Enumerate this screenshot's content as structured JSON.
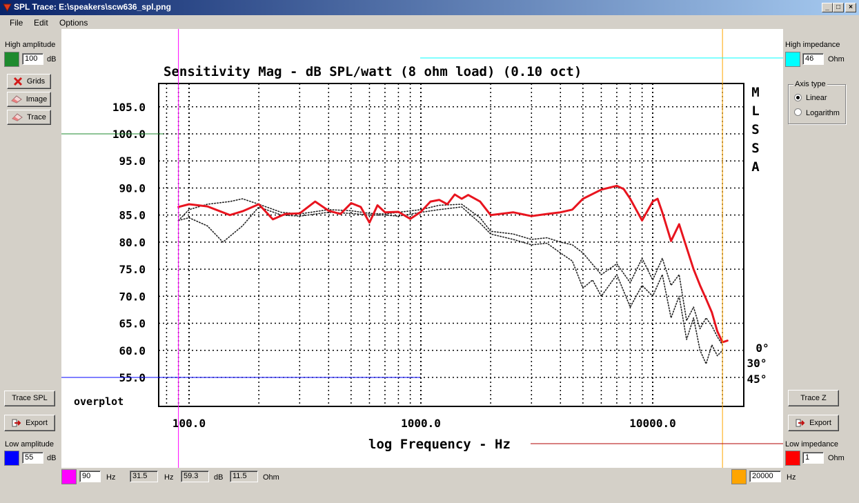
{
  "window": {
    "title": "SPL Trace: E:\\speakers\\scw636_spl.png",
    "min_glyph": "_",
    "max_glyph": "□",
    "close_glyph": "×"
  },
  "menu": [
    "File",
    "Edit",
    "Options"
  ],
  "left": {
    "high_amplitude_label": "High amplitude",
    "high_amplitude_value": "100",
    "high_amplitude_unit": "dB",
    "high_color": "#1e8a2e",
    "grids_label": "Grids",
    "image_label": "Image",
    "trace_label": "Trace",
    "trace_spl_label": "Trace SPL",
    "export_label": "Export",
    "low_amplitude_label": "Low amplitude",
    "low_amplitude_value": "55",
    "low_amplitude_unit": "dB",
    "low_color": "#0000ff"
  },
  "right": {
    "high_impedance_label": "High impedance",
    "high_impedance_value": "46",
    "high_impedance_unit": "Ohm",
    "high_color": "#00ffff",
    "axis_type_label": "Axis type",
    "axis_linear": "Linear",
    "axis_log": "Logarithm",
    "axis_selected": "Linear",
    "trace_z_label": "Trace Z",
    "export_label": "Export",
    "low_impedance_label": "Low impedance",
    "low_impedance_value": "1",
    "low_impedance_unit": "Ohm",
    "low_color": "#ff0000"
  },
  "bottom": {
    "start_color": "#ff00ff",
    "start_freq": "90",
    "hz1": "Hz",
    "readout_freq": "31.5",
    "hz2": "Hz",
    "readout_db": "59.3",
    "db": "dB",
    "readout_ohm": "11.5",
    "ohm": "Ohm",
    "end_color": "#ffa500",
    "end_freq": "20000",
    "hz3": "Hz"
  },
  "chart_data": {
    "type": "line",
    "title": "Sensitivity Mag - dB SPL/watt (8 ohm load) (0.10 oct)",
    "xlabel": "log Frequency - Hz",
    "x_scale": "log",
    "xlim": [
      80,
      22000
    ],
    "ylim": [
      52,
      108
    ],
    "y_ticks": [
      "105.0",
      "100.0",
      "95.0",
      "90.0",
      "85.0",
      "80.0",
      "75.0",
      "70.0",
      "65.0",
      "60.0",
      "55.0"
    ],
    "x_tick_labels": [
      "100.0",
      "1000.0",
      "10000.0"
    ],
    "side_label": "MLSSA",
    "corner_label": "overplot",
    "angle_labels": [
      "0°",
      "30°",
      "45°"
    ],
    "grid": true,
    "series": [
      {
        "name": "0°",
        "color": "#e8141e",
        "style": "solid",
        "x": [
          90,
          100,
          120,
          150,
          170,
          200,
          230,
          260,
          300,
          350,
          400,
          450,
          500,
          550,
          600,
          650,
          700,
          800,
          900,
          1000,
          1100,
          1200,
          1300,
          1400,
          1500,
          1600,
          1800,
          2000,
          2500,
          3000,
          3500,
          4000,
          4500,
          5000,
          6000,
          7000,
          7500,
          8000,
          9000,
          10000,
          10500,
          11000,
          12000,
          13000,
          14000,
          15000,
          16000,
          17000,
          18000,
          19000,
          20000,
          21000
        ],
        "y": [
          86.5,
          87,
          86.6,
          85,
          85.7,
          87,
          84.2,
          85.2,
          85.3,
          87.5,
          85.8,
          85.2,
          87.2,
          86.5,
          83.6,
          86.8,
          85.5,
          85.6,
          84.3,
          85.6,
          87.5,
          87.8,
          87,
          88.8,
          88,
          88.7,
          87.5,
          85,
          85.5,
          84.8,
          85.2,
          85.5,
          86,
          88,
          89.7,
          90.4,
          89.8,
          88,
          84,
          87.5,
          88,
          85.5,
          80.2,
          83.3,
          79,
          75,
          72,
          69.5,
          67,
          63.5,
          61.5,
          61.8
        ]
      },
      {
        "name": "30°",
        "color": "#222222",
        "style": "dotted",
        "x": [
          90,
          100,
          120,
          150,
          170,
          200,
          250,
          300,
          400,
          500,
          600,
          700,
          800,
          1000,
          1200,
          1500,
          1800,
          2000,
          2500,
          3000,
          3500,
          4000,
          4500,
          5000,
          6000,
          7000,
          8000,
          9000,
          10000,
          11000,
          12000,
          13000,
          14000,
          15000,
          16000,
          17000,
          18000,
          19000,
          20000
        ],
        "y": [
          84,
          86,
          87,
          87.5,
          88,
          87,
          85.5,
          85.2,
          86,
          85.8,
          85.3,
          85.2,
          85.5,
          86,
          86.8,
          87,
          84.5,
          82,
          81.5,
          80.5,
          80.8,
          80,
          79.5,
          78,
          74,
          76,
          72.5,
          77,
          73,
          77,
          72,
          74,
          65.5,
          68,
          64,
          66,
          64.5,
          62.5,
          61
        ]
      },
      {
        "name": "45°",
        "color": "#222222",
        "style": "dotted",
        "x": [
          90,
          100,
          120,
          140,
          170,
          200,
          250,
          300,
          400,
          500,
          600,
          700,
          800,
          1000,
          1200,
          1500,
          1800,
          2000,
          2500,
          3000,
          3500,
          4000,
          4500,
          5000,
          5500,
          6000,
          7000,
          8000,
          9000,
          10000,
          11000,
          12000,
          13000,
          14000,
          15000,
          16000,
          17000,
          18000,
          19000,
          20000
        ],
        "y": [
          84,
          84.5,
          83,
          80,
          83,
          86.5,
          85,
          84.8,
          85.5,
          85.3,
          85,
          85,
          84.8,
          85.5,
          86,
          86.5,
          83.5,
          81.5,
          80.5,
          79.5,
          79.8,
          78,
          76.5,
          71.5,
          73,
          70,
          74,
          68,
          72,
          70,
          74,
          66,
          70,
          62,
          66,
          60,
          57.5,
          61,
          59,
          60
        ]
      }
    ]
  }
}
